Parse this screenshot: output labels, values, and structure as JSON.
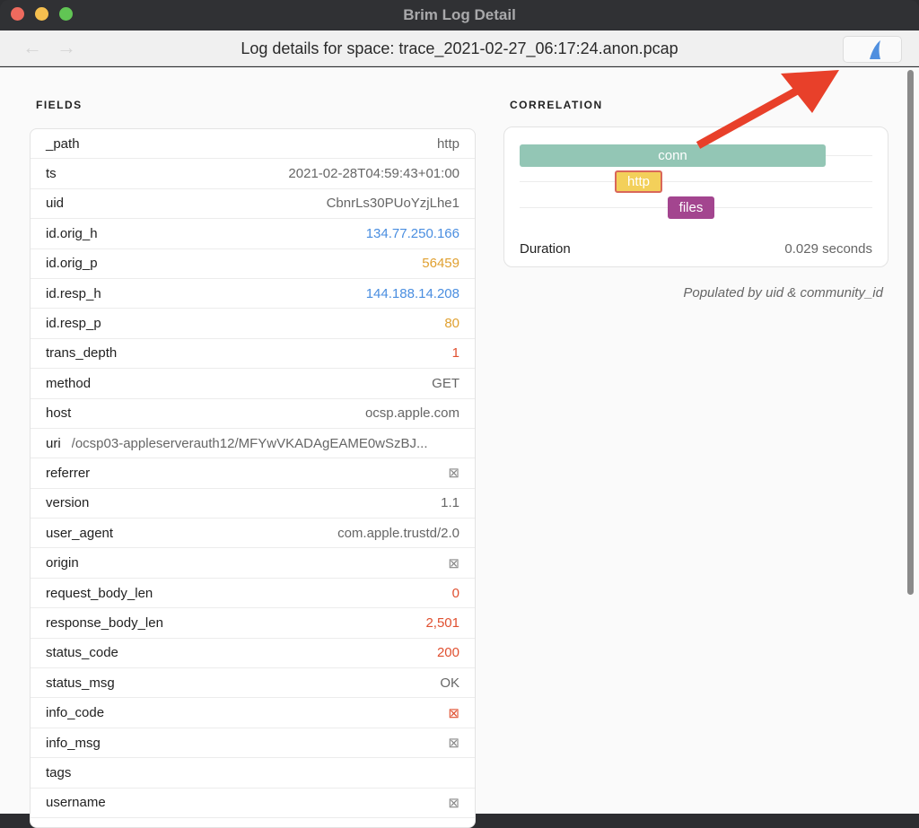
{
  "window": {
    "title": "Brim Log Detail"
  },
  "toolbar": {
    "title": "Log details for space: trace_2021-02-27_06:17:24.anon.pcap",
    "back_icon": "arrow-left",
    "forward_icon": "arrow-right",
    "brim_icon": "shark-fin"
  },
  "fields": {
    "heading": "FIELDS",
    "rows": [
      {
        "key": "_path",
        "value": "http",
        "color": "#666666"
      },
      {
        "key": "ts",
        "value": "2021-02-28T04:59:43+01:00",
        "color": "#666666"
      },
      {
        "key": "uid",
        "value": "CbnrLs30PUoYzjLhe1",
        "color": "#666666"
      },
      {
        "key": "id.orig_h",
        "value": "134.77.250.166",
        "color": "#4a8ee0"
      },
      {
        "key": "id.orig_p",
        "value": "56459",
        "color": "#e0a030"
      },
      {
        "key": "id.resp_h",
        "value": "144.188.14.208",
        "color": "#4a8ee0"
      },
      {
        "key": "id.resp_p",
        "value": "80",
        "color": "#e0a030"
      },
      {
        "key": "trans_depth",
        "value": "1",
        "color": "#e05030"
      },
      {
        "key": "method",
        "value": "GET",
        "color": "#666666"
      },
      {
        "key": "host",
        "value": "ocsp.apple.com",
        "color": "#666666"
      },
      {
        "key": "uri",
        "value": "/ocsp03-appleserverauth12/MFYwVKADAgEAME0wSzBJ...",
        "color": "#666666"
      },
      {
        "key": "referrer",
        "value": "⊠",
        "color": "#888888"
      },
      {
        "key": "version",
        "value": "1.1",
        "color": "#666666"
      },
      {
        "key": "user_agent",
        "value": "com.apple.trustd/2.0",
        "color": "#666666"
      },
      {
        "key": "origin",
        "value": "⊠",
        "color": "#888888"
      },
      {
        "key": "request_body_len",
        "value": "0",
        "color": "#e05030"
      },
      {
        "key": "response_body_len",
        "value": "2,501",
        "color": "#e05030"
      },
      {
        "key": "status_code",
        "value": "200",
        "color": "#e05030"
      },
      {
        "key": "status_msg",
        "value": "OK",
        "color": "#666666"
      },
      {
        "key": "info_code",
        "value": "⊠",
        "color": "#e05030"
      },
      {
        "key": "info_msg",
        "value": "⊠",
        "color": "#888888"
      },
      {
        "key": "tags",
        "value": "",
        "color": "#666666"
      },
      {
        "key": "username",
        "value": "⊠",
        "color": "#888888"
      }
    ]
  },
  "correlation": {
    "heading": "CORRELATION",
    "bars": [
      {
        "label": "conn",
        "color": "#93c6b5"
      },
      {
        "label": "http",
        "color": "#f3d05a"
      },
      {
        "label": "files",
        "color": "#a3458f"
      }
    ],
    "duration_label": "Duration",
    "duration_value": "0.029 seconds",
    "note": "Populated by uid & community_id"
  }
}
